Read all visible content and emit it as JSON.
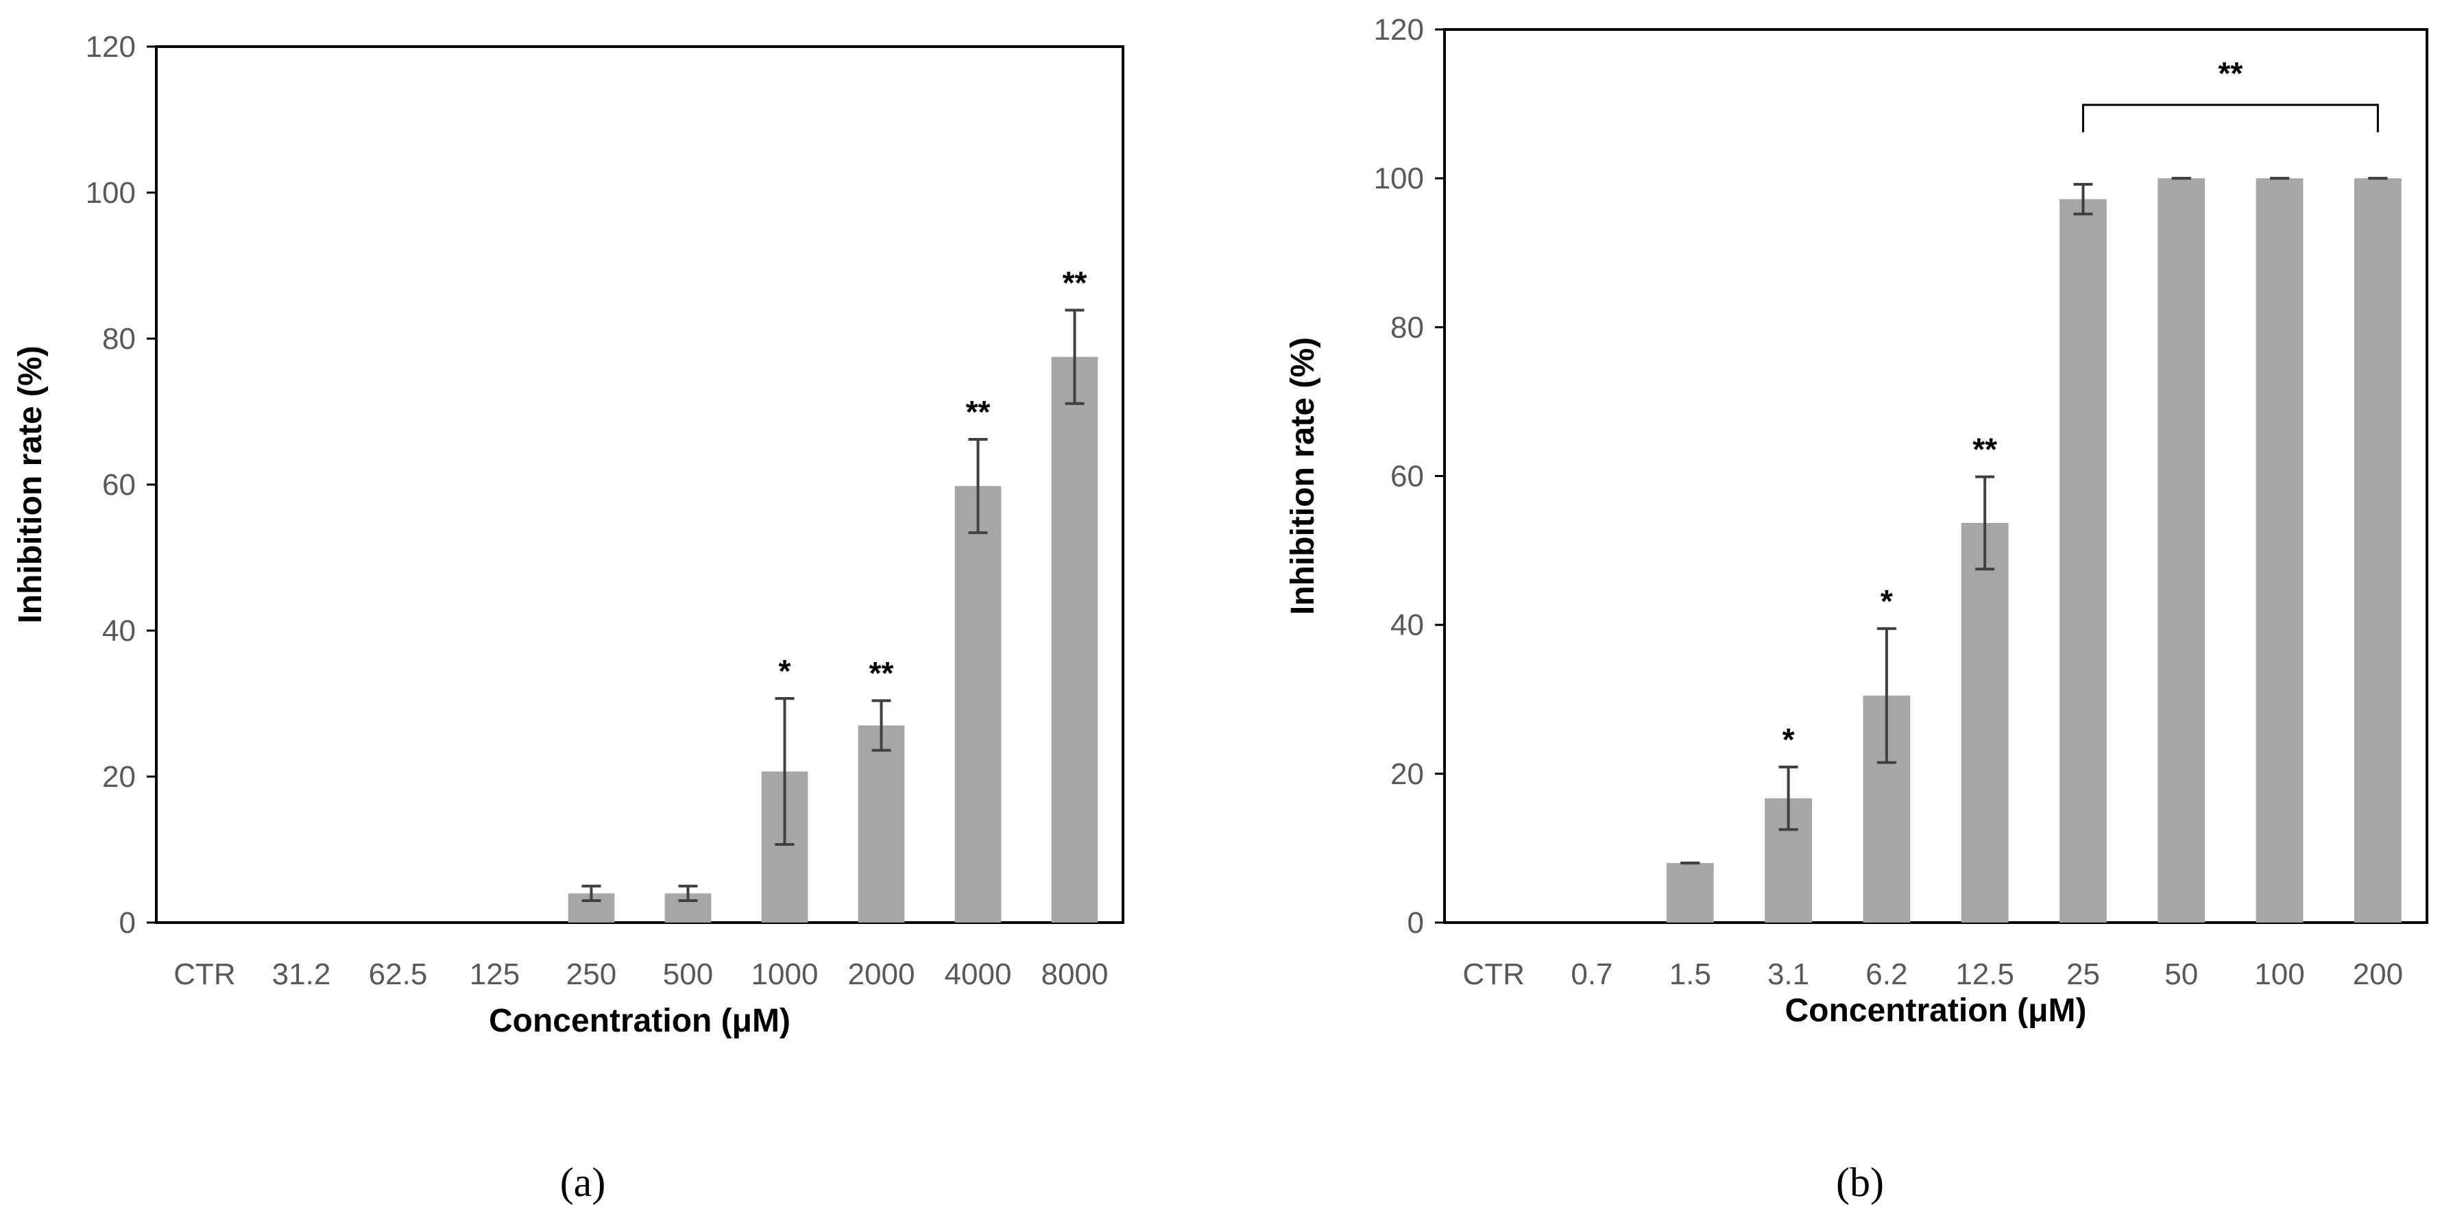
{
  "colors": {
    "bar": "#a6a6a6",
    "error": "#404040",
    "frame": "#000000",
    "tick_text": "#595959"
  },
  "chart_data": [
    {
      "panel_label": "(a)",
      "type": "bar",
      "categories": [
        "CTR",
        "31.2",
        "62.5",
        "125",
        "250",
        "500",
        "1000",
        "2000",
        "4000",
        "8000"
      ],
      "values": [
        0,
        0,
        0,
        0,
        4,
        4,
        20.7,
        27,
        59.8,
        77.5
      ],
      "errors": [
        0,
        0,
        0,
        0,
        1,
        1,
        10,
        3.4,
        6.4,
        6.4
      ],
      "significance": [
        "",
        "",
        "",
        "",
        "",
        "",
        "*",
        "**",
        "**",
        "**"
      ],
      "bracket": null,
      "xlabel": "Concentration (μM)",
      "ylabel": "Inhibition rate (%)",
      "ylim": [
        0,
        120
      ],
      "yticks": [
        0,
        20,
        40,
        60,
        80,
        100,
        120
      ]
    },
    {
      "panel_label": "(b)",
      "type": "bar",
      "categories": [
        "CTR",
        "0.7",
        "1.5",
        "3.1",
        "6.2",
        "12.5",
        "25",
        "50",
        "100",
        "200"
      ],
      "values": [
        0,
        0,
        8,
        16.7,
        30.5,
        53.7,
        97.2,
        100,
        100,
        100
      ],
      "errors": [
        0,
        0,
        0,
        4.2,
        9,
        6.2,
        2,
        0,
        0,
        0
      ],
      "significance": [
        "",
        "",
        "",
        "*",
        "*",
        "**",
        "",
        "",
        "",
        ""
      ],
      "bracket": {
        "from": 6,
        "to": 9,
        "label": "**"
      },
      "xlabel": "Concentration (μM)",
      "ylabel": "Inhibition rate (%)",
      "ylim": [
        0,
        120
      ],
      "yticks": [
        0,
        20,
        40,
        60,
        80,
        100,
        120
      ]
    }
  ]
}
